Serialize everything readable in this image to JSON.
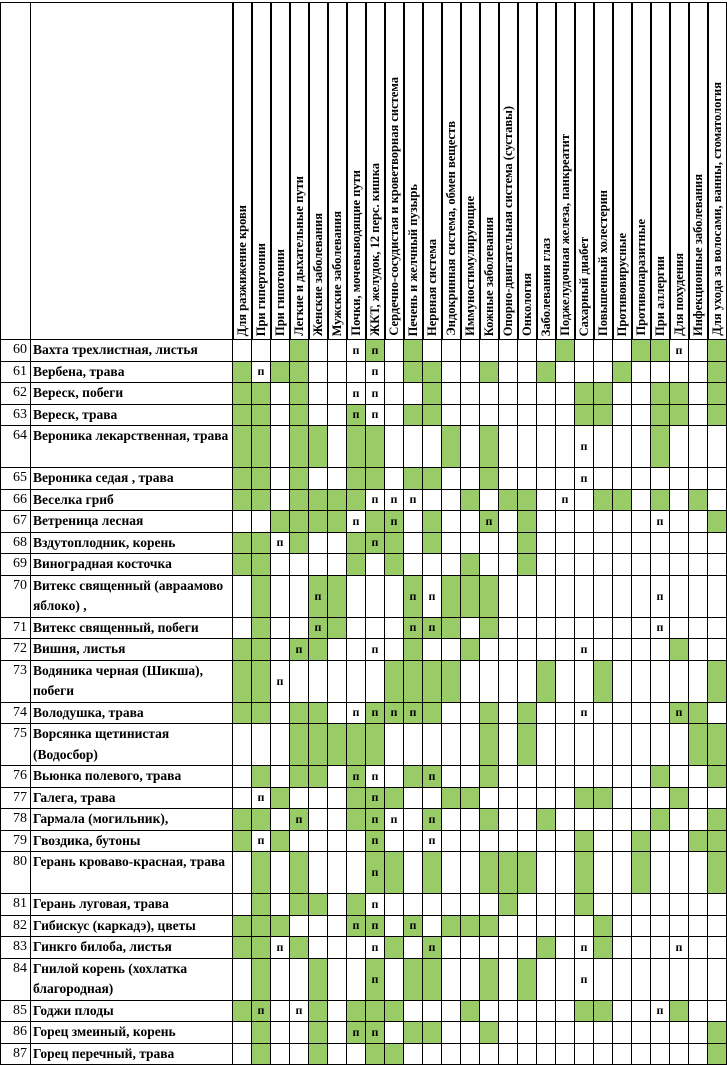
{
  "colors": {
    "highlight": "#99cc66",
    "grid": "#000000"
  },
  "mark_symbol": "п",
  "legend_note": "cells: G = green fill, p = п mark, P = green fill with п mark, . = empty",
  "columns": [
    "Для разжижение крови",
    "При гипертонии",
    "При гипотонии",
    "Легкие и дыхательные пути",
    "Женские заболевания",
    "Мужские заболевания",
    "Почки, мочевыводящие пути",
    "ЖКТ, желудок, 12 перс. кишка",
    "Сердечно-сосудистая и кроветворная система",
    "Печень и желчный пузырь",
    "Нервная система",
    "Эндокринная система, обмен веществ",
    "Иммуностимулирующие",
    "Кожные заболевания",
    "Опорно-двигательная система (суставы)",
    "Онкология",
    "Заболевания глаз",
    "Поджелудочная железа, панкреатит",
    "Сахарный диабет",
    "Повышенный холестерин",
    "Противовирусные",
    "Противопаразитные",
    "При аллергии",
    "Для похудения",
    "Инфекционные заболевания",
    "Для ухода за волосами, ванны, стоматология"
  ],
  "rows": [
    {
      "num": "60",
      "name": "Вахта трехлистная, листья",
      "cells": "...G..pP.G.......G...GGp.G"
    },
    {
      "num": "61",
      "name": "Вербена, трава",
      "cells": "GpGG...p.GG..G..G...G....G"
    },
    {
      "num": "62",
      "name": "Вереск, побеги",
      "cells": "GG.G..pp..G.......GG..GG.G"
    },
    {
      "num": "63",
      "name": "Вереск, трава",
      "cells": "GG.G..Pp.GG.......GG..GG.G"
    },
    {
      "num": "64",
      "name": "Вероника лекарственная, трава",
      "cells": "GG.GG.GG...G.G....p...G...",
      "tall": true
    },
    {
      "num": "65",
      "name": "Вероника седая , трава",
      "cells": "GG.G..GG.GG..G....p......."
    },
    {
      "num": "66",
      "name": "Веселка гриб",
      "cells": "GG.GGGGppp..G.GG.p.GG.G.G."
    },
    {
      "num": "67",
      "name": "Ветреница лесная",
      "cells": "..GGGGpGP.G..P.G......p..G"
    },
    {
      "num": "68",
      "name": "Вздутоплодник, корень",
      "cells": "GGpG..GPG.G....G.........."
    },
    {
      "num": "69",
      "name": "Виноградная косточка",
      "cells": "GG....G.G...G..G.........."
    },
    {
      "num": "70",
      "name": "Витекс священный (авраамово яблоко) ,",
      "cells": ".G..PG...PpGGG........p...",
      "tall": true
    },
    {
      "num": "71",
      "name": "Витекс священный, побеги",
      "cells": ".G..PG...PPG.G........p..."
    },
    {
      "num": "72",
      "name": "Вишня, листья",
      "cells": "GG.PG..p.G..G.....p....G.."
    },
    {
      "num": "73",
      "name": "Водяника черная (Шикша), побеги",
      "cells": "GGp.....GGGG....G..G.....G",
      "tall": true
    },
    {
      "num": "74",
      "name": "Володушка, трава",
      "cells": "GG.GG.pPPPG..G.G..p....PG."
    },
    {
      "num": "75",
      "name": "Ворсянка щетинистая (Водосбор)",
      "cells": "...GGGGG.....G.G........GG",
      "tall": true
    },
    {
      "num": "76",
      "name": "Вьюнка полевого, трава",
      "cells": ".G.GG.Pp.GP..G........G..G"
    },
    {
      "num": "77",
      "name": "Галега, трава",
      "cells": ".pG...GPG..GG.....GG...G.."
    },
    {
      "num": "78",
      "name": "Гармала (могильник),",
      "cells": "GG.P..GPp.P..G..G.....G..G"
    },
    {
      "num": "79",
      "name": "Гвоздика, бутоны",
      "cells": "GpG....P..p.......G..G..GG"
    },
    {
      "num": "80",
      "name": "Герань кроваво-красная, трава",
      "cells": ".G.G...PG.G..GGG..G..G...G",
      "tall": true
    },
    {
      "num": "81",
      "name": "Герань луговая, трава",
      "cells": ".G.GG.Gp......G...G......."
    },
    {
      "num": "82",
      "name": "Гибискус (каркадэ), цветы",
      "cells": "GGG...PP.P.GGG.....G......"
    },
    {
      "num": "83",
      "name": "Гинкго билоба, листья",
      "cells": "GGpG...pG.P.....G.pG...p.."
    },
    {
      "num": "84",
      "name": "Гнилой корень (хохлатка благородная)",
      "cells": ".G..G..P.GG..G.G..p.......",
      "tall": true
    },
    {
      "num": "85",
      "name": "Годжи плоды",
      "cells": "GP.pG.GGG...G.....GG..pG.."
    },
    {
      "num": "86",
      "name": "Горец змеиный, корень",
      "cells": ".G..G.PP.GG..G...........G"
    },
    {
      "num": "87",
      "name": "Горец перечный, трава",
      "cells": ".G..G..GG................G"
    }
  ]
}
